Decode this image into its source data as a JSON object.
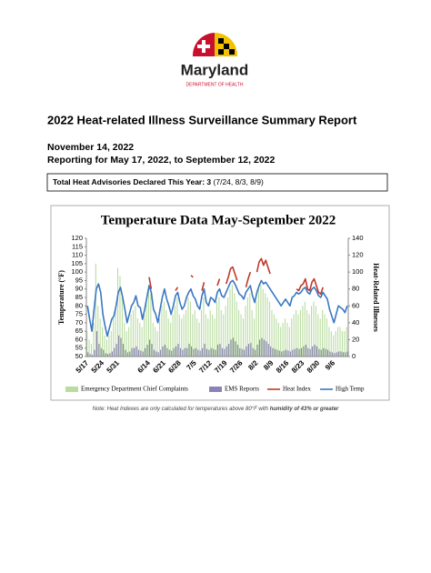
{
  "header": {
    "org": "Maryland",
    "dept": "DEPARTMENT OF HEALTH"
  },
  "report": {
    "title": "2022 Heat-related Illness Surveillance Summary Report",
    "date": "November 14, 2022",
    "period": "Reporting for May 17, 2022, to September 12, 2022",
    "advisories_label": "Total Heat Advisories Declared This Year: 3",
    "advisories_dates": " (7/24, 8/3, 8/9)"
  },
  "note": {
    "text": "Note: Heat Indexes are only calculated for temperatures above 80°F with ",
    "emphasis": "humidity of 43% or greater"
  },
  "chart_data": {
    "type": "combo",
    "title": "Temperature Data May-September 2022",
    "ylabel": "Temperature (°F)",
    "y2label": "Heat-Related Illnesses",
    "ylim": [
      50,
      120
    ],
    "yticks": [
      50,
      55,
      60,
      65,
      70,
      75,
      80,
      85,
      90,
      95,
      100,
      105,
      110,
      115,
      120
    ],
    "y2lim": [
      0,
      140
    ],
    "y2ticks": [
      0,
      20,
      40,
      60,
      80,
      100,
      120,
      140
    ],
    "categories": [
      "5/17",
      null,
      null,
      null,
      null,
      null,
      null,
      "5/24",
      null,
      null,
      null,
      null,
      null,
      null,
      "5/31",
      null,
      null,
      null,
      null,
      null,
      null,
      null,
      null,
      null,
      null,
      null,
      null,
      null,
      "6/14",
      null,
      null,
      null,
      null,
      null,
      null,
      "6/21",
      null,
      null,
      null,
      null,
      null,
      null,
      "6/28",
      null,
      null,
      null,
      null,
      null,
      null,
      "7/5",
      null,
      null,
      null,
      null,
      null,
      null,
      "7/12",
      null,
      null,
      null,
      null,
      null,
      null,
      "7/19",
      null,
      null,
      null,
      null,
      null,
      null,
      "7/26",
      null,
      null,
      null,
      null,
      null,
      null,
      "8/2",
      null,
      null,
      null,
      null,
      null,
      null,
      "8/9",
      null,
      null,
      null,
      null,
      null,
      null,
      "8/16",
      null,
      null,
      null,
      null,
      null,
      null,
      "8/23",
      null,
      null,
      null,
      null,
      null,
      null,
      "8/30",
      null,
      null,
      null,
      null,
      null,
      null,
      "9/6",
      null,
      null,
      null,
      null,
      null,
      null
    ],
    "series": [
      {
        "name": "Emergency Department Chief Complaints",
        "kind": "bar",
        "axis": "y2",
        "color": "#b9dca0",
        "values": [
          30,
          20,
          15,
          40,
          110,
          60,
          45,
          35,
          25,
          20,
          25,
          30,
          45,
          60,
          105,
          95,
          70,
          40,
          30,
          35,
          50,
          55,
          60,
          45,
          40,
          35,
          50,
          70,
          85,
          75,
          40,
          35,
          30,
          45,
          60,
          65,
          55,
          45,
          40,
          50,
          60,
          70,
          50,
          45,
          50,
          55,
          70,
          65,
          50,
          55,
          45,
          40,
          55,
          70,
          50,
          45,
          55,
          50,
          45,
          65,
          70,
          55,
          50,
          60,
          70,
          80,
          85,
          75,
          65,
          55,
          50,
          45,
          60,
          70,
          75,
          55,
          45,
          65,
          80,
          85,
          80,
          75,
          70,
          65,
          55,
          50,
          45,
          40,
          35,
          40,
          45,
          40,
          35,
          45,
          50,
          55,
          50,
          55,
          60,
          65,
          55,
          50,
          60,
          65,
          60,
          50,
          45,
          55,
          50,
          45,
          35,
          30,
          25,
          30,
          35,
          35,
          30,
          30,
          35
        ]
      },
      {
        "name": "EMS Reports",
        "kind": "bar",
        "axis": "y2",
        "color": "#8c82b8",
        "values": [
          5,
          3,
          2,
          8,
          30,
          15,
          10,
          8,
          4,
          3,
          4,
          6,
          10,
          15,
          25,
          22,
          15,
          8,
          5,
          6,
          10,
          10,
          12,
          8,
          7,
          6,
          10,
          14,
          20,
          15,
          8,
          6,
          5,
          8,
          12,
          14,
          10,
          8,
          7,
          10,
          12,
          15,
          10,
          8,
          10,
          10,
          15,
          12,
          9,
          10,
          8,
          7,
          10,
          15,
          9,
          8,
          10,
          9,
          8,
          14,
          15,
          10,
          9,
          12,
          15,
          20,
          22,
          18,
          14,
          10,
          9,
          8,
          12,
          15,
          16,
          10,
          8,
          14,
          20,
          22,
          20,
          18,
          15,
          12,
          10,
          9,
          8,
          7,
          6,
          7,
          8,
          7,
          6,
          8,
          9,
          10,
          9,
          10,
          12,
          14,
          10,
          9,
          12,
          14,
          12,
          9,
          8,
          10,
          9,
          8,
          6,
          5,
          4,
          5,
          6,
          6,
          5,
          5,
          6
        ]
      },
      {
        "name": "Heat Index",
        "kind": "line",
        "color": "#c0392b",
        "values": [
          null,
          null,
          null,
          null,
          null,
          null,
          null,
          null,
          null,
          null,
          null,
          null,
          null,
          null,
          null,
          null,
          null,
          null,
          null,
          null,
          null,
          null,
          null,
          null,
          null,
          null,
          null,
          null,
          97,
          90,
          null,
          null,
          null,
          null,
          null,
          92,
          null,
          null,
          null,
          null,
          89,
          91,
          null,
          null,
          null,
          null,
          null,
          98,
          97,
          null,
          null,
          null,
          89,
          94,
          null,
          null,
          null,
          null,
          null,
          92,
          96,
          null,
          null,
          93,
          97,
          102,
          103,
          99,
          95,
          null,
          null,
          null,
          91,
          96,
          100,
          null,
          null,
          100,
          106,
          108,
          104,
          107,
          103,
          99,
          null,
          null,
          null,
          null,
          null,
          null,
          null,
          null,
          null,
          null,
          null,
          90,
          89,
          92,
          93,
          96,
          90,
          89,
          94,
          96,
          92,
          88,
          87,
          91,
          null,
          null,
          null,
          null,
          null,
          null,
          null,
          null,
          null,
          null,
          null
        ]
      },
      {
        "name": "High Temp",
        "kind": "line",
        "color": "#3a78c2",
        "values": [
          80,
          72,
          65,
          78,
          90,
          93,
          88,
          75,
          68,
          62,
          67,
          72,
          74,
          80,
          88,
          91,
          85,
          78,
          70,
          75,
          80,
          82,
          86,
          80,
          79,
          72,
          78,
          85,
          92,
          88,
          78,
          75,
          70,
          78,
          85,
          90,
          84,
          80,
          75,
          80,
          86,
          88,
          82,
          78,
          80,
          85,
          88,
          90,
          86,
          84,
          80,
          78,
          86,
          90,
          82,
          80,
          85,
          84,
          82,
          88,
          90,
          86,
          85,
          88,
          91,
          94,
          95,
          93,
          90,
          87,
          86,
          84,
          88,
          90,
          92,
          86,
          82,
          88,
          92,
          95,
          93,
          94,
          92,
          90,
          88,
          86,
          84,
          82,
          80,
          82,
          84,
          82,
          80,
          85,
          86,
          88,
          87,
          88,
          90,
          91,
          88,
          87,
          90,
          91,
          89,
          86,
          85,
          88,
          86,
          84,
          78,
          74,
          70,
          75,
          80,
          79,
          78,
          76,
          80
        ]
      }
    ]
  }
}
